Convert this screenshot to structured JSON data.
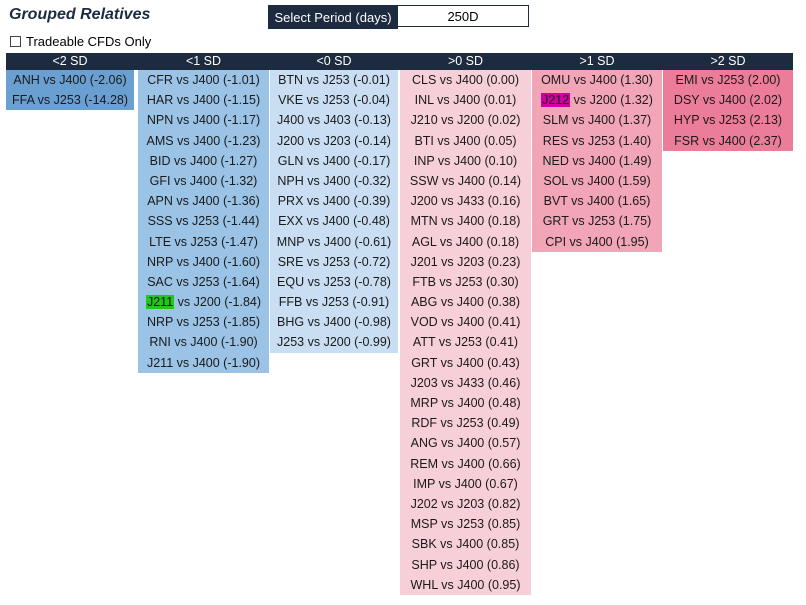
{
  "title": "Grouped Relatives",
  "period": {
    "label": "Select Period (days)",
    "value": "250D"
  },
  "tradeable_cfds": {
    "label": "Tradeable CFDs Only",
    "checked": false
  },
  "colors": {
    "header_bg": "#1c2b3f",
    "lt2sd": "#6a9fd1",
    "lt1sd": "#9bc3e6",
    "lt0sd": "#c9def2",
    "gt0sd": "#f7cfd8",
    "gt1sd": "#f3a5b8",
    "gt2sd": "#ec7d99",
    "highlight_green": "#22c51a",
    "highlight_magenta": "#d000a0"
  },
  "columns": [
    {
      "header": "<2 SD",
      "color": "#6a9fd1",
      "items": [
        {
          "label": "ANH vs J400 (-2.06)"
        },
        {
          "label": "FFA vs J253 (-14.28)"
        }
      ]
    },
    {
      "header": "<1 SD",
      "color": "#9bc3e6",
      "items": [
        {
          "label": "CFR vs J400 (-1.01)"
        },
        {
          "label": "HAR vs J400 (-1.15)"
        },
        {
          "label": "NPN vs J400 (-1.17)"
        },
        {
          "label": "AMS vs J400 (-1.23)"
        },
        {
          "label": "BID vs J400 (-1.27)"
        },
        {
          "label": "GFI vs J400 (-1.32)"
        },
        {
          "label": "APN vs J400 (-1.36)"
        },
        {
          "label": "SSS vs J253 (-1.44)"
        },
        {
          "label": "LTE vs J253 (-1.47)"
        },
        {
          "label": "NRP vs J400 (-1.60)"
        },
        {
          "label": "SAC vs J253 (-1.64)"
        },
        {
          "label": " vs J200 (-1.84)",
          "highlight": "J211",
          "highlight_color": "#22c51a"
        },
        {
          "label": "NRP vs J253 (-1.85)"
        },
        {
          "label": "RNI vs J400 (-1.90)"
        },
        {
          "label": "J211 vs J400 (-1.90)"
        }
      ]
    },
    {
      "header": "<0 SD",
      "color": "#c9def2",
      "items": [
        {
          "label": "BTN vs J253 (-0.01)"
        },
        {
          "label": "VKE vs J253 (-0.04)"
        },
        {
          "label": "J400 vs J403 (-0.13)"
        },
        {
          "label": "J200 vs J203 (-0.14)"
        },
        {
          "label": "GLN vs J400 (-0.17)"
        },
        {
          "label": "NPH vs J400 (-0.32)"
        },
        {
          "label": "PRX vs J400 (-0.39)"
        },
        {
          "label": "EXX vs J400 (-0.48)"
        },
        {
          "label": "MNP vs J400 (-0.61)"
        },
        {
          "label": "SRE vs J253 (-0.72)"
        },
        {
          "label": "EQU vs J253 (-0.78)"
        },
        {
          "label": "FFB vs J253 (-0.91)"
        },
        {
          "label": "BHG vs J400 (-0.98)"
        },
        {
          "label": "J253 vs J200 (-0.99)"
        }
      ]
    },
    {
      "header": ">0 SD",
      "color": "#f7cfd8",
      "items": [
        {
          "label": "CLS vs J400 (0.00)"
        },
        {
          "label": "INL vs J400 (0.01)"
        },
        {
          "label": "J210 vs J200 (0.02)"
        },
        {
          "label": "BTI vs J400 (0.05)"
        },
        {
          "label": "INP vs J400 (0.10)"
        },
        {
          "label": "SSW vs J400 (0.14)"
        },
        {
          "label": "J200 vs J433 (0.16)"
        },
        {
          "label": "MTN vs J400 (0.18)"
        },
        {
          "label": "AGL vs J400 (0.18)"
        },
        {
          "label": "J201 vs J203 (0.23)"
        },
        {
          "label": "FTB vs J253 (0.30)"
        },
        {
          "label": "ABG vs J400 (0.38)"
        },
        {
          "label": "VOD vs J400 (0.41)"
        },
        {
          "label": "ATT vs J253 (0.41)"
        },
        {
          "label": "GRT vs J400 (0.43)"
        },
        {
          "label": "J203 vs J433 (0.46)"
        },
        {
          "label": "MRP vs J400 (0.48)"
        },
        {
          "label": "RDF vs J253 (0.49)"
        },
        {
          "label": "ANG vs J400 (0.57)"
        },
        {
          "label": "REM vs J400 (0.66)"
        },
        {
          "label": "IMP vs J400 (0.67)"
        },
        {
          "label": "J202 vs J203 (0.82)"
        },
        {
          "label": "MSP vs J253 (0.85)"
        },
        {
          "label": "SBK vs J400 (0.85)"
        },
        {
          "label": "SHP vs J400 (0.86)"
        },
        {
          "label": "WHL vs J400 (0.95)"
        }
      ]
    },
    {
      "header": ">1 SD",
      "color": "#f3a5b8",
      "items": [
        {
          "label": "OMU vs J400 (1.30)"
        },
        {
          "label": " vs J200 (1.32)",
          "highlight": "J212",
          "highlight_color": "#d000a0"
        },
        {
          "label": "SLM vs J400 (1.37)"
        },
        {
          "label": "RES vs J253 (1.40)"
        },
        {
          "label": "NED vs J400 (1.49)"
        },
        {
          "label": "SOL vs J400 (1.59)"
        },
        {
          "label": "BVT vs J400 (1.65)"
        },
        {
          "label": "GRT vs J253 (1.75)"
        },
        {
          "label": "CPI vs J400 (1.95)"
        }
      ]
    },
    {
      "header": ">2 SD",
      "color": "#ec7d99",
      "items": [
        {
          "label": "EMI vs J253 (2.00)"
        },
        {
          "label": "DSY vs J400 (2.02)"
        },
        {
          "label": "HYP vs J253 (2.13)"
        },
        {
          "label": "FSR vs J400 (2.37)"
        }
      ]
    }
  ]
}
